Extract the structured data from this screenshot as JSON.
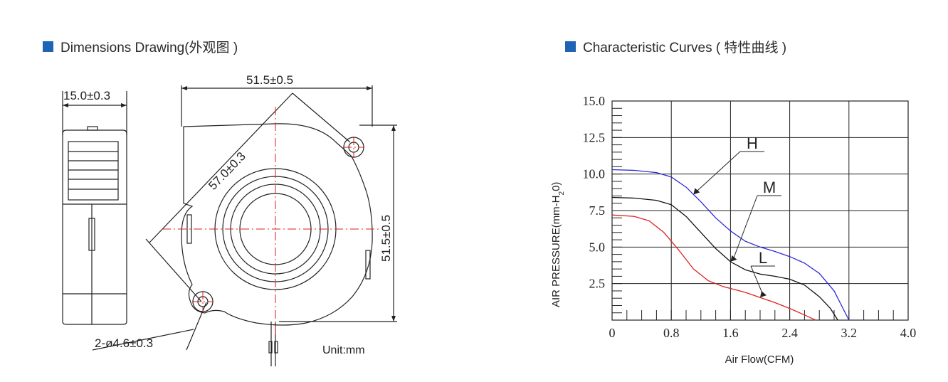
{
  "colors": {
    "accent": "#1f63b4",
    "curve_H": "#2b2bd6",
    "curve_M": "#111111",
    "curve_L": "#e02020",
    "drawing_line": "#222222",
    "centerline": "#e11d1d"
  },
  "left_section": {
    "heading": "Dimensions Drawing(外观图 )",
    "dim_side_width": "15.0±0.3",
    "dim_top_width": "51.5±0.5",
    "dim_diagonal": "57.0±0.3",
    "dim_right_height": "51.5±0.5",
    "dim_holes": "2-ø4.6±0.3",
    "unit_label": "Unit:mm"
  },
  "right_section": {
    "heading": "Characteristic Curves ( 特性曲线 )"
  },
  "chart_data": {
    "type": "line",
    "title": "",
    "xlabel": "Air Flow(CFM)",
    "ylabel_prefix": "AIR PRESSURE(mm-H",
    "ylabel_sub": "2",
    "ylabel_suffix": "0)",
    "xlim": [
      0,
      4.0
    ],
    "ylim": [
      0,
      15.0
    ],
    "x_ticks": [
      "0",
      "0.8",
      "1.6",
      "2.4",
      "3.2",
      "4.0"
    ],
    "y_ticks": [
      "2.5",
      "5.0",
      "7.5",
      "10.0",
      "12.5",
      "15.0"
    ],
    "grid": true,
    "series": [
      {
        "name": "H",
        "color": "#2b2bd6",
        "x": [
          0,
          0.3,
          0.6,
          0.8,
          1.0,
          1.2,
          1.4,
          1.6,
          1.8,
          2.0,
          2.2,
          2.4,
          2.6,
          2.8,
          3.0,
          3.1,
          3.2
        ],
        "y": [
          10.3,
          10.25,
          10.1,
          9.8,
          9.1,
          8.1,
          7.0,
          6.1,
          5.4,
          5.0,
          4.7,
          4.35,
          3.9,
          3.2,
          2.0,
          1.0,
          0
        ]
      },
      {
        "name": "M",
        "color": "#111111",
        "x": [
          0,
          0.3,
          0.6,
          0.8,
          1.0,
          1.2,
          1.4,
          1.6,
          1.8,
          2.0,
          2.2,
          2.4,
          2.6,
          2.8,
          2.95,
          3.05
        ],
        "y": [
          8.4,
          8.35,
          8.2,
          7.9,
          7.1,
          6.0,
          4.9,
          4.0,
          3.45,
          3.15,
          3.0,
          2.8,
          2.4,
          1.6,
          0.8,
          0
        ]
      },
      {
        "name": "L",
        "color": "#e02020",
        "x": [
          0,
          0.3,
          0.5,
          0.7,
          0.9,
          1.1,
          1.3,
          1.5,
          1.8,
          2.0,
          2.2,
          2.4,
          2.6,
          2.75
        ],
        "y": [
          7.2,
          7.1,
          6.8,
          6.0,
          4.8,
          3.5,
          2.7,
          2.3,
          1.9,
          1.55,
          1.2,
          0.8,
          0.35,
          0
        ]
      }
    ],
    "annotations": [
      {
        "label": "H",
        "series": "H"
      },
      {
        "label": "M",
        "series": "M"
      },
      {
        "label": "L",
        "series": "L"
      }
    ]
  }
}
